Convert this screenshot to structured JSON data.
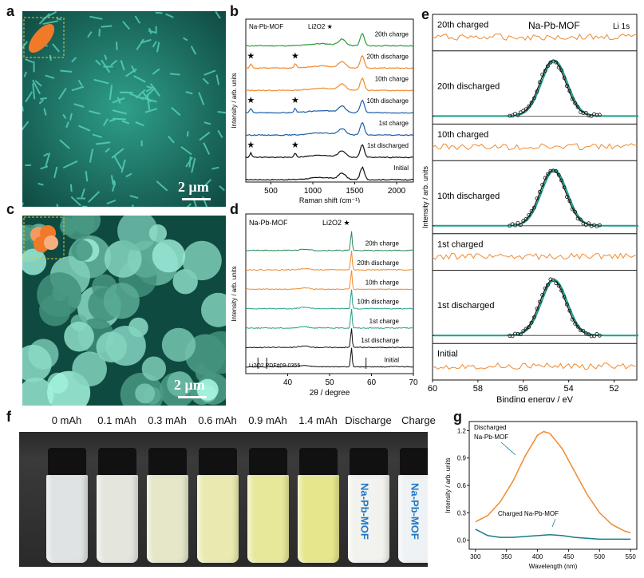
{
  "panel_labels": {
    "a": "a",
    "b": "b",
    "c": "c",
    "d": "d",
    "e": "e",
    "f": "f",
    "g": "g"
  },
  "sem": {
    "a_scale": "2 μm",
    "c_scale": "2 μm"
  },
  "chart_data": [
    {
      "id": "b",
      "type": "line",
      "title": "Na-Pb-MOF",
      "legend_marker": "Li2O2 ★",
      "xlabel": "Raman shift (cm⁻¹)",
      "ylabel": "Intensity / arb. units",
      "xlim": [
        200,
        2200
      ],
      "xticks": [
        500,
        1000,
        1500,
        2000
      ],
      "series": [
        {
          "name": "20th charge",
          "color": "#2e9a3a",
          "star_peaks": []
        },
        {
          "name": "20th discharge",
          "color": "#f08a30",
          "star_peaks": [
            260,
            790
          ]
        },
        {
          "name": "10th charge",
          "color": "#f08a30",
          "star_peaks": []
        },
        {
          "name": "10th discharge",
          "color": "#1f5fa8",
          "star_peaks": [
            260,
            790
          ]
        },
        {
          "name": "1st charge",
          "color": "#1f5fa8",
          "star_peaks": []
        },
        {
          "name": "1st discharged",
          "color": "#111111",
          "star_peaks": [
            260,
            790
          ]
        },
        {
          "name": "Initial",
          "color": "#111111",
          "star_peaks": []
        }
      ]
    },
    {
      "id": "d",
      "type": "line",
      "title": "Na-Pb-MOF",
      "legend_marker": "Li2O2 ★",
      "xlabel": "2θ / degree",
      "ylabel": "Intensity / arb. units",
      "xlim": [
        30,
        70
      ],
      "xticks": [
        40,
        50,
        60,
        70
      ],
      "reference": "Li2O2 PDF#09-0355",
      "series": [
        {
          "name": "20th charge",
          "color": "#2e8a5a"
        },
        {
          "name": "20th discharge",
          "color": "#f08a30"
        },
        {
          "name": "10th charge",
          "color": "#f08a30"
        },
        {
          "name": "10th discharge",
          "color": "#2aa08a"
        },
        {
          "name": "1st charge",
          "color": "#2aa08a"
        },
        {
          "name": "1st discharge",
          "color": "#111111"
        },
        {
          "name": "Initial",
          "color": "#111111"
        }
      ]
    },
    {
      "id": "e",
      "type": "line",
      "title": "Na-Pb-MOF",
      "subtitle": "Li 1s",
      "xlabel": "Binding energy / eV",
      "ylabel": "Intensity / arb. units",
      "xlim": [
        60,
        51
      ],
      "xticks": [
        60,
        58,
        56,
        54,
        52
      ],
      "peak_eV": 54.7,
      "rows": [
        {
          "name": "20th charged",
          "peak": false
        },
        {
          "name": "20th discharged",
          "peak": true
        },
        {
          "name": "10th charged",
          "peak": false
        },
        {
          "name": "10th discharged",
          "peak": true
        },
        {
          "name": "1st charged",
          "peak": false
        },
        {
          "name": "1st discharged",
          "peak": true
        },
        {
          "name": "Initial",
          "peak": false
        }
      ]
    },
    {
      "id": "g",
      "type": "line",
      "xlabel": "Wavelength (nm)",
      "ylabel": "Intensity / arb. units",
      "xlim": [
        290,
        560
      ],
      "ylim": [
        -0.1,
        1.3
      ],
      "xticks": [
        300,
        350,
        400,
        450,
        500,
        550
      ],
      "yticks": [
        0.0,
        0.3,
        0.6,
        0.9,
        1.2
      ],
      "series": [
        {
          "name": "Discharged Na-Pb-MOF",
          "color": "#f08a30",
          "x": [
            300,
            320,
            340,
            360,
            380,
            400,
            410,
            420,
            440,
            460,
            480,
            500,
            520,
            540,
            550
          ],
          "y": [
            0.2,
            0.27,
            0.42,
            0.64,
            0.92,
            1.15,
            1.19,
            1.17,
            1.0,
            0.75,
            0.5,
            0.3,
            0.17,
            0.1,
            0.08
          ]
        },
        {
          "name": "Charged Na-Pb-MOF",
          "color": "#1a7a8a",
          "x": [
            300,
            320,
            340,
            360,
            380,
            400,
            420,
            440,
            460,
            480,
            500,
            520,
            550
          ],
          "y": [
            0.12,
            0.05,
            0.03,
            0.03,
            0.04,
            0.05,
            0.06,
            0.05,
            0.03,
            0.02,
            0.01,
            0.01,
            0.01
          ]
        }
      ]
    }
  ],
  "vials": {
    "labels": [
      "0 mAh",
      "0.1 mAh",
      "0.3 mAh",
      "0.6 mAh",
      "0.9 mAh",
      "1.4 mAh",
      "Discharge",
      "Charge"
    ],
    "liquid_colors": [
      "#dfe3e3",
      "#e4e6de",
      "#e6e6c8",
      "#eaeab0",
      "#e8e89a",
      "#e6e68c",
      "#f2f2ee",
      "#eef2f4"
    ],
    "vial_text": "Na-Pb-MOF"
  }
}
